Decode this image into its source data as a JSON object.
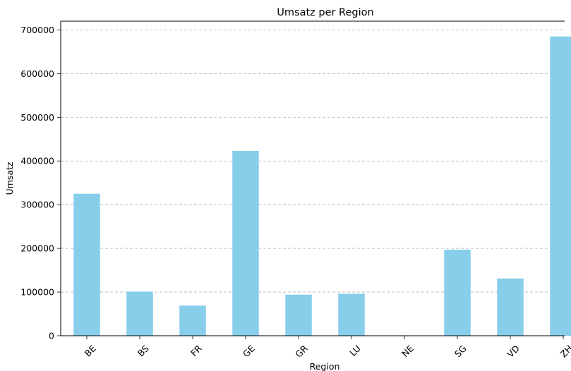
{
  "chart_data": {
    "type": "bar",
    "title": "Umsatz per Region",
    "xlabel": "Region",
    "ylabel": "Umsatz",
    "categories": [
      "BE",
      "BS",
      "FR",
      "GE",
      "GR",
      "LU",
      "NE",
      "SG",
      "VD",
      "ZH"
    ],
    "values": [
      325000,
      101000,
      69000,
      423000,
      94000,
      96000,
      0,
      197000,
      131000,
      685000
    ],
    "ylim": [
      0,
      720000
    ],
    "yticks": [
      0,
      100000,
      200000,
      300000,
      400000,
      500000,
      600000,
      700000
    ],
    "ytick_labels": [
      "0",
      "100000",
      "200000",
      "300000",
      "400000",
      "500000",
      "600000",
      "700000"
    ],
    "grid": "y-dashed",
    "bar_color": "#87ceeb"
  }
}
